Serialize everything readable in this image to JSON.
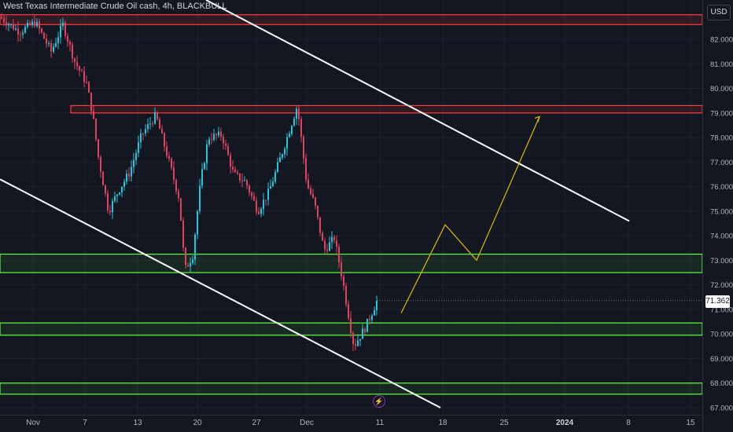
{
  "header": {
    "title": "West Texas Intermediate Crude Oil cash, 4h, BLACKBULL",
    "currency": "USD"
  },
  "last_price": "71.362",
  "colors": {
    "background": "#131722",
    "up_candle": "#26c6da",
    "down_candle": "#e0435e",
    "resistance_zone": "#ff3b3b",
    "support_zone": "#5cff3b",
    "trendline": "#ffffff",
    "projection": "#e5b800"
  },
  "icons": {
    "event_marker": "lightning-bolt-icon"
  },
  "chart_data": {
    "type": "candlestick",
    "title": "West Texas Intermediate Crude Oil cash, 4h, BLACKBULL",
    "ylim": [
      66.8,
      83.5
    ],
    "y_ticks": [
      "82.000",
      "81.000",
      "80.000",
      "79.000",
      "78.000",
      "77.000",
      "76.000",
      "75.000",
      "74.000",
      "73.000",
      "72.000",
      "71.000",
      "70.000",
      "69.000",
      "68.000",
      "67.000"
    ],
    "x_ticks": [
      "Nov",
      "7",
      "13",
      "20",
      "27",
      "Dec",
      "11",
      "18",
      "25",
      "2024",
      "8",
      "15"
    ],
    "price_path": [
      [
        0,
        82.9
      ],
      [
        25,
        82.3
      ],
      [
        45,
        82.7
      ],
      [
        65,
        81.5
      ],
      [
        80,
        82.6
      ],
      [
        95,
        81.1
      ],
      [
        110,
        80.2
      ],
      [
        118,
        78.9
      ],
      [
        125,
        77.2
      ],
      [
        138,
        75.0
      ],
      [
        150,
        75.8
      ],
      [
        165,
        76.6
      ],
      [
        180,
        78.1
      ],
      [
        198,
        78.9
      ],
      [
        215,
        77.0
      ],
      [
        228,
        75.5
      ],
      [
        235,
        72.6
      ],
      [
        245,
        73.2
      ],
      [
        255,
        76.2
      ],
      [
        265,
        78.0
      ],
      [
        282,
        78.1
      ],
      [
        297,
        76.5
      ],
      [
        312,
        76.2
      ],
      [
        328,
        75.0
      ],
      [
        342,
        75.8
      ],
      [
        360,
        77.5
      ],
      [
        378,
        79.3
      ],
      [
        390,
        76.1
      ],
      [
        400,
        75.3
      ],
      [
        412,
        73.4
      ],
      [
        425,
        73.9
      ],
      [
        435,
        72.3
      ],
      [
        445,
        70.4
      ],
      [
        450,
        69.5
      ],
      [
        465,
        70.3
      ],
      [
        480,
        71.4
      ]
    ],
    "resistance_zones": [
      {
        "x_from": "start",
        "x_to": "end",
        "y_low": 82.6,
        "y_high": 83.0
      },
      {
        "x_from": "Nov 7",
        "x_to": "end",
        "y_low": 79.0,
        "y_high": 79.3
      }
    ],
    "support_zones": [
      {
        "y_low": 72.5,
        "y_high": 73.25
      },
      {
        "y_low": 69.95,
        "y_high": 70.45
      },
      {
        "y_low": 67.55,
        "y_high": 68.0
      }
    ],
    "trendlines": [
      {
        "from": [
          262,
          83.6
        ],
        "to": [
          800,
          74.6
        ]
      },
      {
        "from": [
          0,
          76.3
        ],
        "to": [
          560,
          67.0
        ]
      }
    ],
    "projection_path": [
      [
        510,
        70.85
      ],
      [
        566,
        74.45
      ],
      [
        606,
        73.0
      ],
      [
        686,
        78.85
      ]
    ]
  }
}
